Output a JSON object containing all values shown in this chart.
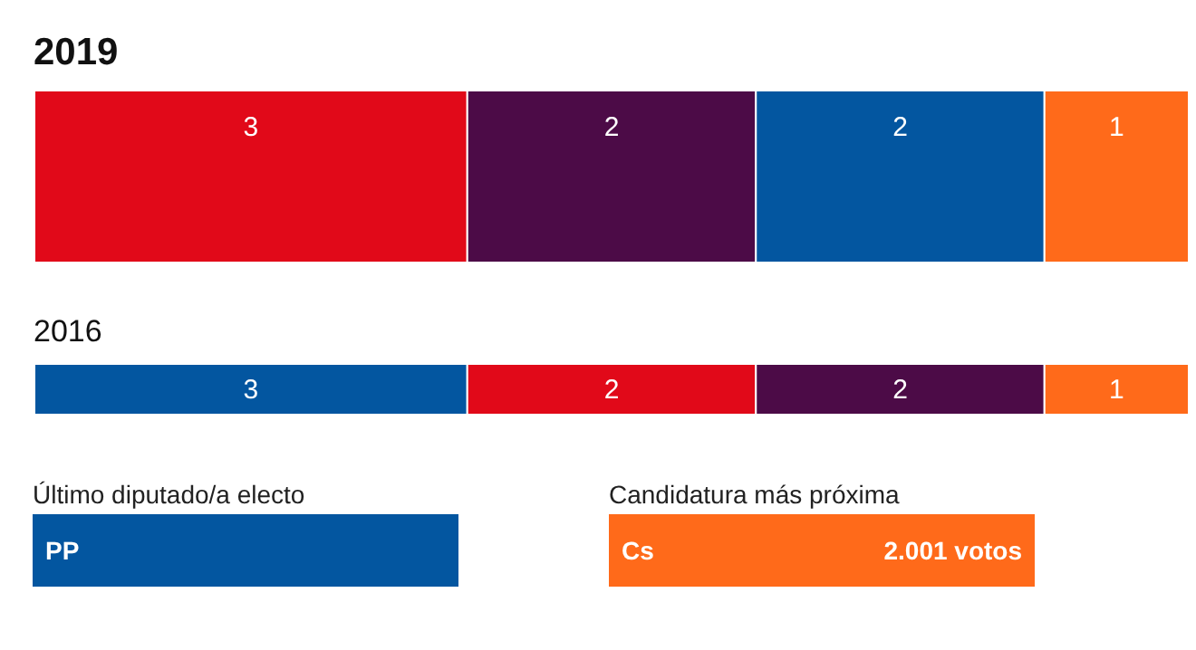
{
  "chart_data": [
    {
      "type": "bar",
      "title": "2019",
      "orientation": "horizontal",
      "stacked": true,
      "categories": [
        null
      ],
      "xlim": [
        0,
        8
      ],
      "tick_labels": false,
      "data_labels": true,
      "series": [
        {
          "color": "#e10919",
          "values": [
            3
          ]
        },
        {
          "color": "#4c0b47",
          "values": [
            2
          ]
        },
        {
          "color": "#0356a0",
          "values": [
            2
          ]
        },
        {
          "color": "#ff6a1a",
          "values": [
            1
          ]
        }
      ]
    },
    {
      "type": "bar",
      "title": "2016",
      "orientation": "horizontal",
      "stacked": true,
      "categories": [
        null
      ],
      "xlim": [
        0,
        8
      ],
      "tick_labels": false,
      "data_labels": true,
      "series": [
        {
          "color": "#0356a0",
          "values": [
            3
          ]
        },
        {
          "color": "#e10919",
          "values": [
            2
          ]
        },
        {
          "color": "#4c0b47",
          "values": [
            2
          ]
        },
        {
          "color": "#ff6a1a",
          "values": [
            1
          ]
        }
      ]
    },
    {
      "type": "other",
      "annotations": [
        "Último diputado/a electo",
        "PP",
        "Candidatura más próxima",
        "Cs",
        "2.001 votos"
      ],
      "colors": [
        "#0356a0",
        "#ff6a1a"
      ]
    }
  ]
}
